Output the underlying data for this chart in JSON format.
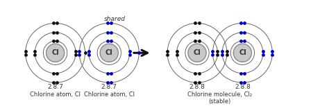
{
  "bg_color": "#ffffff",
  "atom_label": "Cl",
  "atom1_label": "2.8.7",
  "atom1_name": "Chlorine atom, Cl",
  "atom2_label": "2.8.7",
  "atom2_name": "Chlorine atom, Cl",
  "mol1_label1": "2.8.8",
  "mol1_label2": "2.8.8",
  "mol_name": "Chlorine molecule, Cl₂",
  "mol_stable": "(stable)",
  "shared_label": "shared",
  "nucleus_color": "#c8c8c8",
  "nucleus_edge": "#888888",
  "dot_black": "#111111",
  "dot_blue": "#0000cc",
  "orbit_color": "#666666",
  "arrow_color": "#111111",
  "text_color": "#333333",
  "figsize": [
    4.74,
    1.53
  ],
  "dpi": 100
}
